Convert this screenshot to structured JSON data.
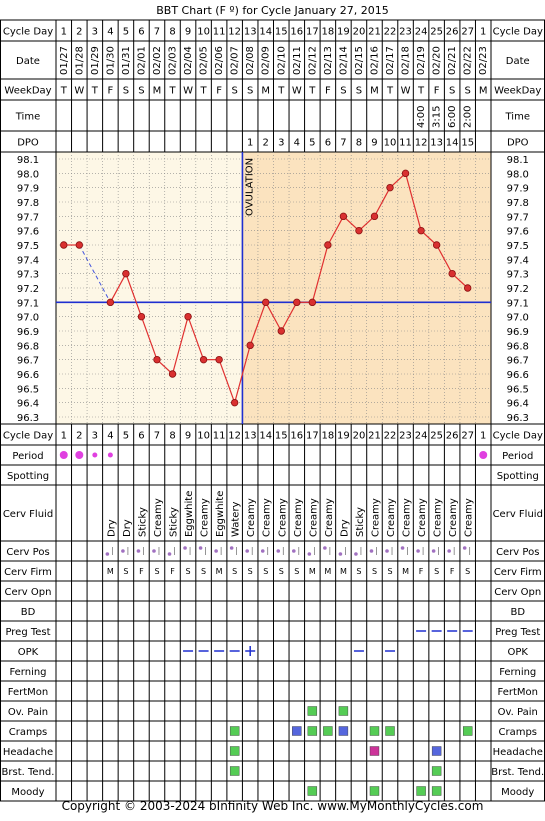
{
  "title": "BBT Chart (F º) for Cycle January 27, 2015",
  "footer": "Copyright © 2003-2024 bInfinity Web Inc.    www.MyMonthlyCycles.com",
  "colors": {
    "grid": "#000000",
    "follicular_bg": "#fdf7e6",
    "luteal_bg": "#fbe3bf",
    "temp_line": "#e03030",
    "temp_point": "#d93030",
    "coverline": "#1f2fd0",
    "ovulation_line": "#1f2fd0",
    "period_dot": "#e040e0",
    "mark_green": "#55cc55",
    "mark_blue": "#5566dd",
    "mark_magenta": "#cc3399"
  },
  "labels": {
    "cycle_day": "Cycle Day",
    "date": "Date",
    "weekday": "WeekDay",
    "time": "Time",
    "dpo": "DPO",
    "ovulation": "OVULATION"
  },
  "cycle_days": [
    "1",
    "2",
    "3",
    "4",
    "5",
    "6",
    "7",
    "8",
    "9",
    "10",
    "11",
    "12",
    "13",
    "14",
    "15",
    "16",
    "17",
    "18",
    "19",
    "20",
    "21",
    "22",
    "23",
    "24",
    "25",
    "26",
    "27",
    "1"
  ],
  "dates": [
    "01/27",
    "01/28",
    "01/29",
    "01/30",
    "01/31",
    "02/01",
    "02/02",
    "02/03",
    "02/04",
    "02/05",
    "02/06",
    "02/07",
    "02/08",
    "02/09",
    "02/10",
    "02/11",
    "02/12",
    "02/13",
    "02/14",
    "02/15",
    "02/16",
    "02/17",
    "02/18",
    "02/19",
    "02/20",
    "02/21",
    "02/22",
    "02/23"
  ],
  "weekdays": [
    "T",
    "W",
    "T",
    "F",
    "S",
    "S",
    "M",
    "T",
    "W",
    "T",
    "F",
    "S",
    "S",
    "M",
    "T",
    "W",
    "T",
    "F",
    "S",
    "S",
    "M",
    "T",
    "W",
    "T",
    "F",
    "S",
    "S",
    "M"
  ],
  "times": [
    "",
    "",
    "",
    "",
    "",
    "",
    "",
    "",
    "",
    "",
    "",
    "",
    "",
    "",
    "",
    "",
    "",
    "",
    "",
    "",
    "",
    "",
    "",
    "4:00",
    "3:15",
    "6:00",
    "2:00",
    ""
  ],
  "dpo": [
    "",
    "",
    "",
    "",
    "",
    "",
    "",
    "",
    "",
    "",
    "",
    "",
    "1",
    "2",
    "3",
    "4",
    "5",
    "6",
    "7",
    "8",
    "9",
    "10",
    "11",
    "12",
    "13",
    "14",
    "15",
    ""
  ],
  "chart_data": {
    "type": "line",
    "title": "BBT Chart (F º) for Cycle January 27, 2015",
    "xlabel": "Cycle Day",
    "ylabel": "",
    "ylim": [
      96.3,
      98.1
    ],
    "y_ticks": [
      "98.1",
      "98.0",
      "97.9",
      "97.8",
      "97.7",
      "97.6",
      "97.5",
      "97.4",
      "97.3",
      "97.2",
      "97.1",
      "97.0",
      "96.9",
      "96.8",
      "96.7",
      "96.6",
      "96.5",
      "96.4",
      "96.3"
    ],
    "x": [
      1,
      2,
      3,
      4,
      5,
      6,
      7,
      8,
      9,
      10,
      11,
      12,
      13,
      14,
      15,
      16,
      17,
      18,
      19,
      20,
      21,
      22,
      23,
      24,
      25,
      26,
      27,
      28
    ],
    "series": [
      {
        "values": [
          97.5,
          97.5,
          null,
          97.1,
          97.3,
          97.0,
          96.7,
          96.6,
          97.0,
          96.7,
          96.7,
          96.4,
          96.8,
          97.1,
          96.9,
          97.1,
          97.1,
          97.5,
          97.7,
          97.6,
          97.7,
          97.9,
          98.0,
          97.6,
          97.5,
          97.3,
          97.2,
          null
        ]
      }
    ],
    "dashed_segment": [
      2,
      4
    ],
    "coverline": 97.1,
    "ovulation_after_day": 12,
    "grid": true
  },
  "rows": [
    {
      "label": "Period",
      "type": "period",
      "h": 20,
      "cells": [
        "big",
        "big",
        "small",
        "small",
        "",
        "",
        "",
        "",
        "",
        "",
        "",
        "",
        "",
        "",
        "",
        "",
        "",
        "",
        "",
        "",
        "",
        "",
        "",
        "",
        "",
        "",
        "",
        "big"
      ]
    },
    {
      "label": "Spotting",
      "type": "text",
      "h": 20,
      "cells": []
    },
    {
      "label": "Cerv Fluid",
      "type": "vtext",
      "h": 56,
      "cells": [
        "",
        "",
        "",
        "Dry",
        "Dry",
        "Sticky",
        "Creamy",
        "Sticky",
        "Eggwhite",
        "Creamy",
        "Eggwhite",
        "Watery",
        "Creamy",
        "Creamy",
        "Creamy",
        "Creamy",
        "Creamy",
        "Creamy",
        "Dry",
        "Sticky",
        "Creamy",
        "Creamy",
        "Creamy",
        "Creamy",
        "Creamy",
        "Creamy",
        "Creamy",
        ""
      ]
    },
    {
      "label": "Cerv Pos",
      "type": "pos",
      "h": 20,
      "cells": [
        "",
        "",
        "",
        "low",
        "mid",
        "mid",
        "mid",
        "low",
        "high",
        "high",
        "mid",
        "high",
        "mid",
        "mid",
        "mid",
        "mid",
        "low",
        "high",
        "low",
        "low",
        "mid",
        "mid",
        "high",
        "mid",
        "mid",
        "mid",
        "high",
        ""
      ]
    },
    {
      "label": "Cerv Firm",
      "type": "text",
      "h": 20,
      "cells": [
        "",
        "",
        "",
        "M",
        "S",
        "F",
        "S",
        "F",
        "S",
        "S",
        "M",
        "S",
        "S",
        "S",
        "S",
        "S",
        "M",
        "M",
        "M",
        "S",
        "S",
        "S",
        "M",
        "F",
        "S",
        "F",
        "S",
        ""
      ]
    },
    {
      "label": "Cerv Opn",
      "type": "text",
      "h": 20,
      "cells": []
    },
    {
      "label": "BD",
      "type": "text",
      "h": 20,
      "cells": []
    },
    {
      "label": "Preg Test",
      "type": "dash",
      "h": 20,
      "cells": [
        "",
        "",
        "",
        "",
        "",
        "",
        "",
        "",
        "",
        "",
        "",
        "",
        "",
        "",
        "",
        "",
        "",
        "",
        "",
        "",
        "",
        "",
        "",
        "neg",
        "neg",
        "neg",
        "neg",
        ""
      ]
    },
    {
      "label": "OPK",
      "type": "dash",
      "h": 20,
      "cells": [
        "",
        "",
        "",
        "",
        "",
        "",
        "",
        "",
        "neg",
        "neg",
        "neg",
        "neg",
        "pos",
        "",
        "",
        "",
        "",
        "",
        "",
        "neg",
        "",
        "neg",
        "",
        "",
        "",
        "",
        "",
        ""
      ]
    },
    {
      "label": "Ferning",
      "type": "text",
      "h": 20,
      "cells": []
    },
    {
      "label": "FertMon",
      "type": "text",
      "h": 20,
      "cells": []
    },
    {
      "label": "Ov. Pain",
      "type": "mark",
      "h": 20,
      "cells": [
        "",
        "",
        "",
        "",
        "",
        "",
        "",
        "",
        "",
        "",
        "",
        "",
        "",
        "",
        "",
        "",
        "green",
        "",
        "green",
        "",
        "",
        "",
        "",
        "",
        "",
        "",
        "",
        ""
      ]
    },
    {
      "label": "Cramps",
      "type": "mark",
      "h": 20,
      "cells": [
        "",
        "",
        "",
        "",
        "",
        "",
        "",
        "",
        "",
        "",
        "",
        "green",
        "",
        "",
        "",
        "blue",
        "green",
        "green",
        "blue",
        "",
        "green",
        "green",
        "",
        "",
        "",
        "",
        "green",
        ""
      ]
    },
    {
      "label": "Headache",
      "type": "mark",
      "h": 20,
      "cells": [
        "",
        "",
        "",
        "",
        "",
        "",
        "",
        "",
        "",
        "",
        "",
        "green",
        "",
        "",
        "",
        "",
        "",
        "",
        "",
        "",
        "magenta",
        "",
        "",
        "",
        "blue",
        "",
        "",
        ""
      ]
    },
    {
      "label": "Brst. Tend.",
      "type": "mark",
      "h": 20,
      "cells": [
        "",
        "",
        "",
        "",
        "",
        "",
        "",
        "",
        "",
        "",
        "",
        "green",
        "",
        "",
        "",
        "",
        "",
        "",
        "",
        "",
        "",
        "",
        "",
        "",
        "green",
        "",
        "",
        ""
      ]
    },
    {
      "label": "Moody",
      "type": "mark",
      "h": 20,
      "cells": [
        "",
        "",
        "",
        "",
        "",
        "",
        "",
        "",
        "",
        "",
        "",
        "",
        "",
        "",
        "",
        "",
        "green",
        "",
        "",
        "",
        "green",
        "",
        "",
        "green",
        "green",
        "",
        "",
        ""
      ]
    }
  ]
}
